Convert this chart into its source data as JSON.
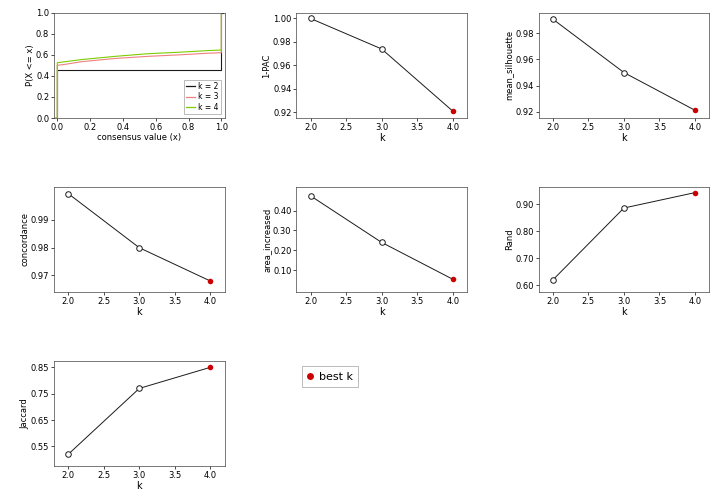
{
  "ecdf": {
    "k2": {
      "x": [
        -0.01,
        0.0,
        0.0,
        0.5,
        0.5,
        1.0,
        1.0,
        1.01
      ],
      "y": [
        0.0,
        0.0,
        0.46,
        0.46,
        0.46,
        0.46,
        1.0,
        1.0
      ]
    },
    "k3": {
      "x": [
        -0.01,
        0.0,
        0.0,
        0.05,
        0.15,
        0.35,
        0.55,
        0.75,
        0.92,
        1.0,
        1.0,
        1.01
      ],
      "y": [
        0.0,
        0.0,
        0.5,
        0.51,
        0.535,
        0.565,
        0.585,
        0.6,
        0.615,
        0.62,
        1.0,
        1.0
      ]
    },
    "k4": {
      "x": [
        -0.01,
        0.0,
        0.0,
        0.05,
        0.15,
        0.35,
        0.55,
        0.75,
        0.92,
        1.0,
        1.0,
        1.01
      ],
      "y": [
        0.0,
        0.0,
        0.525,
        0.535,
        0.555,
        0.585,
        0.61,
        0.625,
        0.64,
        0.645,
        1.0,
        1.0
      ]
    },
    "colors": {
      "k2": "#1a1a1a",
      "k3": "#f08080",
      "k4": "#7ccd00"
    },
    "xlabel": "consensus value (x)",
    "ylabel": "P(X <= x)",
    "ylim": [
      0.0,
      1.0
    ],
    "xlim": [
      -0.02,
      1.02
    ],
    "xticks": [
      0.0,
      0.2,
      0.4,
      0.6,
      0.8,
      1.0
    ],
    "yticks": [
      0.0,
      0.2,
      0.4,
      0.6,
      0.8,
      1.0
    ]
  },
  "pac": {
    "k": [
      2,
      3,
      4
    ],
    "values": [
      1.0,
      0.974,
      0.921
    ],
    "best_k": 4,
    "ylabel": "1-PAC",
    "xlabel": "k",
    "ylim": [
      0.915,
      1.005
    ],
    "yticks": [
      0.92,
      0.94,
      0.96,
      0.98,
      1.0
    ]
  },
  "silhouette": {
    "k": [
      2,
      3,
      4
    ],
    "values": [
      0.991,
      0.95,
      0.921
    ],
    "best_k": 4,
    "ylabel": "mean_silhouette",
    "xlabel": "k",
    "ylim": [
      0.915,
      0.996
    ],
    "yticks": [
      0.92,
      0.94,
      0.96,
      0.98
    ]
  },
  "concordance": {
    "k": [
      2,
      3,
      4
    ],
    "values": [
      0.9995,
      0.98,
      0.968
    ],
    "best_k": 4,
    "ylabel": "concordance",
    "xlabel": "k",
    "ylim": [
      0.964,
      1.002
    ],
    "yticks": [
      0.97,
      0.98,
      0.99
    ]
  },
  "area_increased": {
    "k": [
      2,
      3,
      4
    ],
    "values": [
      0.474,
      0.24,
      0.055
    ],
    "best_k": 4,
    "ylabel": "area_increased",
    "xlabel": "k",
    "ylim": [
      -0.01,
      0.52
    ],
    "yticks": [
      0.1,
      0.2,
      0.3,
      0.4
    ]
  },
  "rand": {
    "k": [
      2,
      3,
      4
    ],
    "values": [
      0.62,
      0.886,
      0.943
    ],
    "best_k": 4,
    "ylabel": "Rand",
    "xlabel": "k",
    "ylim": [
      0.575,
      0.965
    ],
    "yticks": [
      0.6,
      0.7,
      0.8,
      0.9
    ]
  },
  "jaccard": {
    "k": [
      2,
      3,
      4
    ],
    "values": [
      0.52,
      0.77,
      0.85
    ],
    "best_k": 4,
    "ylabel": "Jaccard",
    "xlabel": "k",
    "ylim": [
      0.475,
      0.875
    ],
    "yticks": [
      0.55,
      0.65,
      0.75,
      0.85
    ]
  },
  "best_k_color": "#cc0000",
  "line_color": "#1a1a1a",
  "bg_color": "white",
  "legend_labels": [
    "k = 2",
    "k = 3",
    "k = 4"
  ],
  "legend_colors": [
    "#1a1a1a",
    "#f08080",
    "#7ccd00"
  ]
}
